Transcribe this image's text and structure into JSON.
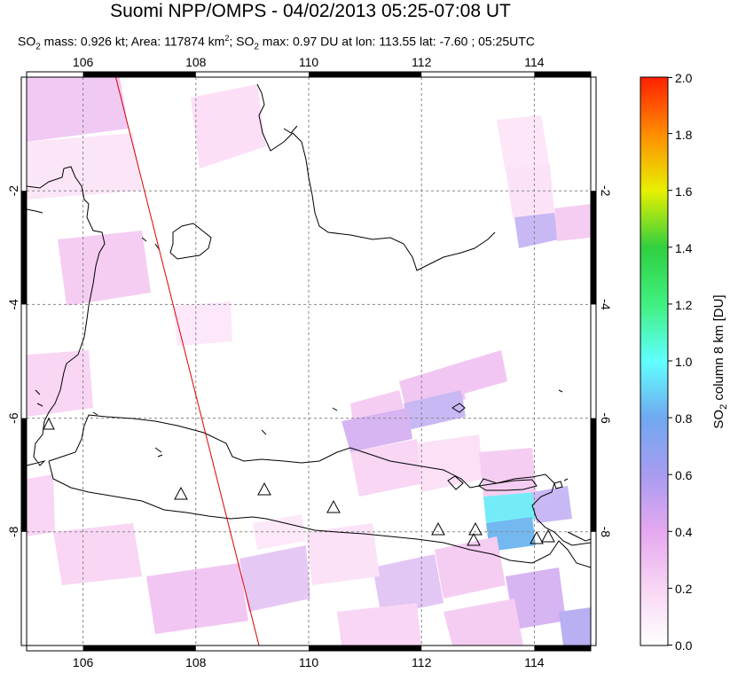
{
  "title": "Suomi NPP/OMPS - 04/02/2013 05:25-07:08 UT",
  "subtitle": {
    "p1": "SO",
    "s1": "2",
    "p2": " mass: 0.926 kt; Area: 117874 km",
    "s2": "2",
    "p3": "; SO",
    "s3": "2",
    "p4": " max: 0.97 DU at lon: 113.55 lat: -7.60 ; 05:25UTC"
  },
  "map": {
    "lon_range": [
      105,
      115
    ],
    "lat_range": [
      -10,
      0
    ],
    "lon_ticks": [
      "106",
      "108",
      "110",
      "112",
      "114"
    ],
    "lat_ticks": [
      "-2",
      "-4",
      "-6",
      "-8"
    ],
    "grid": true,
    "volcano_icon": "triangle-outline-icon"
  },
  "colorbar": {
    "title_prefix": "SO",
    "title_sub": "2",
    "title_suffix": " column 8 km [DU]",
    "ticks": [
      "0.0",
      "0.2",
      "0.4",
      "0.6",
      "0.8",
      "1.0",
      "1.2",
      "1.4",
      "1.6",
      "1.8",
      "2.0"
    ],
    "colors": [
      "#ffffff",
      "#f8d0f4",
      "#a89cf0",
      "#60ffff",
      "#30e040",
      "#f0f000",
      "#ff8000",
      "#ff2000"
    ]
  }
}
